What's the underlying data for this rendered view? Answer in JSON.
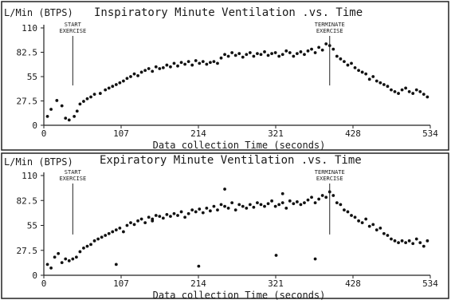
{
  "chart_data": [
    {
      "type": "scatter",
      "ylabel": "L/Min (BTPS)",
      "title": "Inspiratory Minute Ventilation .vs. Time",
      "xlabel": "Data collection Time (seconds)",
      "xlim": [
        0,
        534
      ],
      "ylim": [
        0,
        110
      ],
      "xticks": [
        "0",
        "107",
        "214",
        "321",
        "428",
        "534"
      ],
      "yticks": [
        "0",
        "27.5",
        "55",
        "82.5",
        "110"
      ],
      "annotations": [
        {
          "text": "START\nEXERCISE",
          "x": 40
        },
        {
          "text": "TERMINATE\nEXERCISE",
          "x": 395
        }
      ],
      "series": [
        {
          "points": [
            [
              5,
              10
            ],
            [
              10,
              18
            ],
            [
              18,
              28
            ],
            [
              25,
              22
            ],
            [
              30,
              8
            ],
            [
              35,
              6
            ],
            [
              42,
              10
            ],
            [
              46,
              16
            ],
            [
              50,
              24
            ],
            [
              55,
              27
            ],
            [
              60,
              30
            ],
            [
              65,
              32
            ],
            [
              70,
              35
            ],
            [
              78,
              36
            ],
            [
              85,
              40
            ],
            [
              90,
              42
            ],
            [
              95,
              44
            ],
            [
              100,
              46
            ],
            [
              105,
              48
            ],
            [
              110,
              50
            ],
            [
              115,
              53
            ],
            [
              120,
              55
            ],
            [
              125,
              58
            ],
            [
              130,
              56
            ],
            [
              135,
              60
            ],
            [
              140,
              62
            ],
            [
              145,
              64
            ],
            [
              150,
              61
            ],
            [
              155,
              66
            ],
            [
              160,
              64
            ],
            [
              165,
              65
            ],
            [
              170,
              68
            ],
            [
              175,
              66
            ],
            [
              180,
              70
            ],
            [
              185,
              67
            ],
            [
              190,
              71
            ],
            [
              195,
              69
            ],
            [
              200,
              72
            ],
            [
              205,
              68
            ],
            [
              210,
              73
            ],
            [
              215,
              70
            ],
            [
              220,
              72
            ],
            [
              225,
              69
            ],
            [
              230,
              71
            ],
            [
              235,
              72
            ],
            [
              240,
              70
            ],
            [
              245,
              76
            ],
            [
              250,
              80
            ],
            [
              255,
              78
            ],
            [
              260,
              82
            ],
            [
              265,
              79
            ],
            [
              270,
              81
            ],
            [
              275,
              77
            ],
            [
              280,
              80
            ],
            [
              285,
              82
            ],
            [
              290,
              78
            ],
            [
              295,
              81
            ],
            [
              300,
              80
            ],
            [
              305,
              83
            ],
            [
              310,
              79
            ],
            [
              315,
              81
            ],
            [
              320,
              82
            ],
            [
              325,
              78
            ],
            [
              330,
              80
            ],
            [
              335,
              84
            ],
            [
              340,
              82
            ],
            [
              345,
              78
            ],
            [
              350,
              81
            ],
            [
              355,
              83
            ],
            [
              360,
              80
            ],
            [
              365,
              84
            ],
            [
              370,
              86
            ],
            [
              375,
              82
            ],
            [
              380,
              88
            ],
            [
              385,
              85
            ],
            [
              390,
              92
            ],
            [
              395,
              90
            ],
            [
              400,
              86
            ],
            [
              405,
              78
            ],
            [
              410,
              75
            ],
            [
              415,
              72
            ],
            [
              420,
              68
            ],
            [
              425,
              70
            ],
            [
              430,
              65
            ],
            [
              435,
              62
            ],
            [
              440,
              60
            ],
            [
              445,
              58
            ],
            [
              450,
              52
            ],
            [
              455,
              55
            ],
            [
              460,
              50
            ],
            [
              465,
              48
            ],
            [
              470,
              46
            ],
            [
              475,
              44
            ],
            [
              480,
              40
            ],
            [
              485,
              38
            ],
            [
              490,
              36
            ],
            [
              495,
              40
            ],
            [
              500,
              42
            ],
            [
              505,
              38
            ],
            [
              510,
              36
            ],
            [
              515,
              40
            ],
            [
              520,
              38
            ],
            [
              525,
              35
            ],
            [
              530,
              32
            ]
          ]
        }
      ]
    },
    {
      "type": "scatter",
      "ylabel": "L/Min (BTPS)",
      "title": "Expiratory Minute Ventilation .vs. Time",
      "xlabel": "Data collection Time (seconds)",
      "xlim": [
        0,
        534
      ],
      "ylim": [
        0,
        110
      ],
      "xticks": [
        "0",
        "107",
        "214",
        "321",
        "428",
        "534"
      ],
      "yticks": [
        "0",
        "27.5",
        "55",
        "82.5",
        "110"
      ],
      "annotations": [
        {
          "text": "START\nEXERCISE",
          "x": 40
        },
        {
          "text": "TERMINATE\nEXERCISE",
          "x": 395
        }
      ],
      "series": [
        {
          "points": [
            [
              5,
              12
            ],
            [
              10,
              8
            ],
            [
              15,
              20
            ],
            [
              20,
              24
            ],
            [
              25,
              14
            ],
            [
              30,
              18
            ],
            [
              35,
              16
            ],
            [
              40,
              18
            ],
            [
              45,
              20
            ],
            [
              50,
              26
            ],
            [
              55,
              30
            ],
            [
              60,
              32
            ],
            [
              65,
              34
            ],
            [
              70,
              38
            ],
            [
              75,
              40
            ],
            [
              80,
              42
            ],
            [
              85,
              44
            ],
            [
              90,
              46
            ],
            [
              95,
              48
            ],
            [
              100,
              50
            ],
            [
              105,
              52
            ],
            [
              110,
              48
            ],
            [
              115,
              55
            ],
            [
              120,
              58
            ],
            [
              125,
              56
            ],
            [
              130,
              60
            ],
            [
              135,
              62
            ],
            [
              140,
              58
            ],
            [
              145,
              64
            ],
            [
              150,
              62
            ],
            [
              155,
              66
            ],
            [
              160,
              65
            ],
            [
              165,
              63
            ],
            [
              170,
              67
            ],
            [
              175,
              65
            ],
            [
              180,
              68
            ],
            [
              185,
              66
            ],
            [
              190,
              70
            ],
            [
              195,
              64
            ],
            [
              200,
              68
            ],
            [
              205,
              72
            ],
            [
              210,
              70
            ],
            [
              215,
              73
            ],
            [
              220,
              69
            ],
            [
              225,
              74
            ],
            [
              230,
              71
            ],
            [
              235,
              76
            ],
            [
              240,
              72
            ],
            [
              245,
              78
            ],
            [
              250,
              76
            ],
            [
              255,
              74
            ],
            [
              260,
              80
            ],
            [
              265,
              72
            ],
            [
              270,
              78
            ],
            [
              275,
              76
            ],
            [
              280,
              74
            ],
            [
              285,
              78
            ],
            [
              290,
              75
            ],
            [
              295,
              80
            ],
            [
              300,
              78
            ],
            [
              305,
              76
            ],
            [
              310,
              79
            ],
            [
              315,
              82
            ],
            [
              320,
              76
            ],
            [
              325,
              78
            ],
            [
              330,
              80
            ],
            [
              335,
              74
            ],
            [
              340,
              82
            ],
            [
              345,
              79
            ],
            [
              350,
              81
            ],
            [
              355,
              78
            ],
            [
              360,
              80
            ],
            [
              365,
              83
            ],
            [
              370,
              86
            ],
            [
              375,
              80
            ],
            [
              380,
              84
            ],
            [
              385,
              88
            ],
            [
              390,
              86
            ],
            [
              395,
              92
            ],
            [
              400,
              88
            ],
            [
              405,
              80
            ],
            [
              410,
              78
            ],
            [
              415,
              72
            ],
            [
              420,
              70
            ],
            [
              425,
              66
            ],
            [
              430,
              64
            ],
            [
              435,
              60
            ],
            [
              440,
              58
            ],
            [
              445,
              62
            ],
            [
              450,
              54
            ],
            [
              455,
              56
            ],
            [
              460,
              50
            ],
            [
              465,
              52
            ],
            [
              470,
              46
            ],
            [
              475,
              44
            ],
            [
              480,
              40
            ],
            [
              485,
              38
            ],
            [
              490,
              36
            ],
            [
              495,
              38
            ],
            [
              500,
              36
            ],
            [
              505,
              38
            ],
            [
              510,
              35
            ],
            [
              515,
              40
            ],
            [
              520,
              36
            ],
            [
              525,
              32
            ],
            [
              530,
              38
            ],
            [
              100,
              12
            ],
            [
              150,
              60
            ],
            [
              214,
              10
            ],
            [
              250,
              95
            ],
            [
              321,
              22
            ],
            [
              330,
              90
            ],
            [
              375,
              18
            ]
          ]
        }
      ]
    }
  ]
}
